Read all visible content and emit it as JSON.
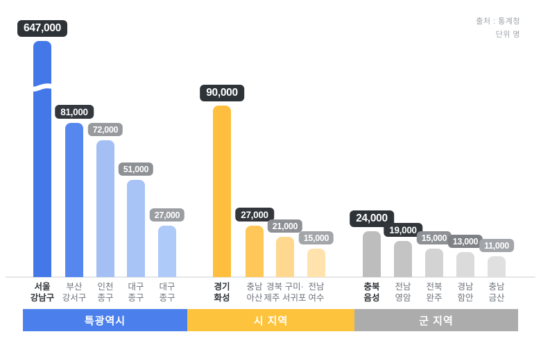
{
  "source_note": "출처 : 통계청",
  "unit_note": "단위 명",
  "chart_data": {
    "type": "bar",
    "source": "출처 : 통계청",
    "unit": "단위 명",
    "axis": {
      "baseline_visible": true,
      "y_axis_broken_for_first_bar": true,
      "value_per_pixel": 365
    },
    "groups": [
      {
        "label": "특광역시",
        "band_color": "#4b80ec",
        "bars": [
          {
            "label_lines": [
              "서울",
              "강남구"
            ],
            "value": 647000,
            "value_text": "647,000",
            "color": "#4478e8",
            "badge_color": "#2e3338",
            "tier": 1,
            "emphasized_label": true,
            "broken": true
          },
          {
            "label_lines": [
              "부산",
              "강서구"
            ],
            "value": 81000,
            "value_text": "81,000",
            "color": "#5587ef",
            "badge_color": "#33383e",
            "tier": 2,
            "emphasized_label": false,
            "broken": false
          },
          {
            "label_lines": [
              "인천",
              "종구"
            ],
            "value": 72000,
            "value_text": "72,000",
            "color": "#a3bff4",
            "badge_color": "#97999d",
            "tier": 3,
            "emphasized_label": false,
            "broken": false
          },
          {
            "label_lines": [
              "대구",
              "종구"
            ],
            "value": 51000,
            "value_text": "51,000",
            "color": "#a8c4f7",
            "badge_color": "#8d9094",
            "tier": 3,
            "emphasized_label": false,
            "broken": false
          },
          {
            "label_lines": [
              "대구",
              "종구"
            ],
            "value": 27000,
            "value_text": "27,000",
            "color": "#aecaf9",
            "badge_color": "#9a9da1",
            "tier": 3,
            "emphasized_label": false,
            "broken": false
          }
        ]
      },
      {
        "label": "시 지역",
        "band_color": "#fec33c",
        "bars": [
          {
            "label_lines": [
              "경기",
              "화성"
            ],
            "value": 90000,
            "value_text": "90,000",
            "color": "#ffbe3d",
            "badge_color": "#2e3338",
            "tier": 1,
            "emphasized_label": true,
            "broken": false
          },
          {
            "label_lines": [
              "충남",
              "아산"
            ],
            "value": 27000,
            "value_text": "27,000",
            "color": "#ffc757",
            "badge_color": "#33373b",
            "tier": 2,
            "emphasized_label": false,
            "broken": false
          },
          {
            "label_lines": [
              "경북 구미·",
              "제주 서귀포"
            ],
            "value": 21000,
            "value_text": "21,000",
            "color": "#ffd890",
            "badge_color": "#8d9094",
            "tier": 3,
            "emphasized_label": false,
            "broken": false
          },
          {
            "label_lines": [
              "전남",
              "여수"
            ],
            "value": 15000,
            "value_text": "15,000",
            "color": "#ffe2ac",
            "badge_color": "#a2a5a9",
            "tier": 3,
            "emphasized_label": false,
            "broken": false
          }
        ]
      },
      {
        "label": "군 지역",
        "band_color": "#acacac",
        "bars": [
          {
            "label_lines": [
              "충북",
              "음성"
            ],
            "value": 24000,
            "value_text": "24,000",
            "color": "#bdbdbd",
            "badge_color": "#2e3338",
            "tier": 1,
            "emphasized_label": true,
            "broken": false
          },
          {
            "label_lines": [
              "전남",
              "영암"
            ],
            "value": 19000,
            "value_text": "19,000",
            "color": "#c4c4c4",
            "badge_color": "#33373b",
            "tier": 2,
            "emphasized_label": false,
            "broken": false
          },
          {
            "label_lines": [
              "전북",
              "완주"
            ],
            "value": 15000,
            "value_text": "15,000",
            "color": "#d3d3d3",
            "badge_color": "#8d9094",
            "tier": 3,
            "emphasized_label": false,
            "broken": false
          },
          {
            "label_lines": [
              "경남",
              "함안"
            ],
            "value": 13000,
            "value_text": "13,000",
            "color": "#dbdbdb",
            "badge_color": "#7e8185",
            "tier": 3,
            "emphasized_label": false,
            "broken": false
          },
          {
            "label_lines": [
              "충남",
              "금산"
            ],
            "value": 11000,
            "value_text": "11,000",
            "color": "#e0e0e0",
            "badge_color": "#a2a5a9",
            "tier": 3,
            "emphasized_label": false,
            "broken": false
          }
        ]
      }
    ]
  }
}
